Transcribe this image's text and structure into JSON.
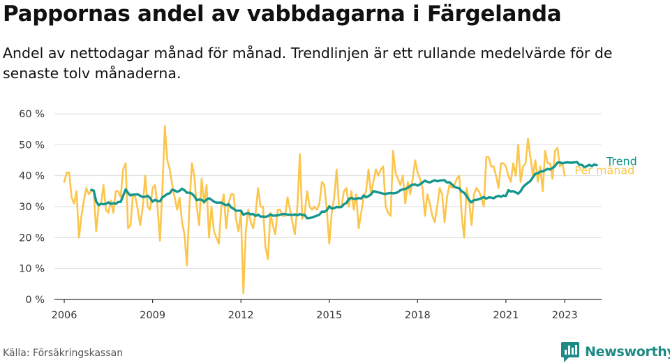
{
  "title": "Pappornas andel av vabbdagarna i Färgelanda",
  "subtitle": "Andel av nettodagar månad för månad. Trendlinjen är ett rullande medelvärde för de senaste tolv månaderna.",
  "source": "Källa: Försäkringskassan",
  "logo": {
    "text": "Newsworthy",
    "icon": "newsworthy-chart-icon"
  },
  "colors": {
    "trend": "#14968c",
    "monthly": "#fcc54c",
    "grid": "#dddddd",
    "axis": "#333333",
    "logo": "#1d8a85"
  },
  "chart_data": {
    "type": "line",
    "x_ticks": [
      "2006",
      "2009",
      "2012",
      "2015",
      "2018",
      "2021",
      "2023"
    ],
    "y_ticks": [
      "0 %",
      "10 %",
      "20 %",
      "30 %",
      "40 %",
      "50 %",
      "60 %"
    ],
    "ylim": [
      0,
      60
    ],
    "xlim": [
      "2005-09",
      "2024-04"
    ],
    "grid": "horizontal",
    "legend": "line-end labels, right",
    "series": [
      {
        "name": "Per månad",
        "color": "#fcc54c",
        "start": "2006-01",
        "values": [
          38,
          41,
          41,
          33,
          31,
          35,
          20,
          27,
          32,
          36,
          34,
          35,
          35,
          22,
          30,
          31,
          37,
          29,
          28,
          32,
          28,
          35,
          35,
          33,
          42,
          44,
          23,
          24,
          34,
          33,
          29,
          24,
          30,
          40,
          30,
          29,
          36,
          37,
          30,
          19,
          36,
          56,
          45,
          42,
          37,
          33,
          29,
          33,
          25,
          21,
          11,
          30,
          44,
          40,
          30,
          24,
          39,
          31,
          37,
          20,
          30,
          22,
          20,
          18,
          30,
          34,
          23,
          31,
          34,
          34,
          26,
          22,
          28,
          2,
          22,
          29,
          25,
          23,
          28,
          36,
          30,
          30,
          17,
          13,
          28,
          24,
          21,
          29,
          29,
          27,
          27,
          33,
          29,
          25,
          21,
          30,
          47,
          26,
          28,
          35,
          30,
          29,
          30,
          29,
          31,
          38,
          37,
          29,
          18,
          28,
          33,
          42,
          30,
          30,
          35,
          36,
          30,
          35,
          29,
          34,
          23,
          28,
          33,
          35,
          42,
          34,
          38,
          42,
          40,
          42,
          43,
          30,
          28,
          27,
          48,
          41,
          39,
          37,
          40,
          31,
          38,
          34,
          39,
          45,
          41,
          39,
          36,
          27,
          34,
          31,
          27,
          25,
          30,
          36,
          34,
          25,
          33,
          37,
          36,
          37,
          39,
          40,
          27,
          20,
          36,
          32,
          24,
          34,
          36,
          35,
          33,
          30,
          46,
          46,
          43,
          43,
          40,
          36,
          44,
          44,
          43,
          40,
          38,
          44,
          40,
          50,
          38,
          43,
          44,
          52,
          46,
          40,
          45,
          38,
          43,
          35,
          48,
          44,
          44,
          39,
          48,
          49,
          43,
          44,
          40
        ]
      },
      {
        "name": "Trend",
        "color": "#14968c",
        "start": "2006-12",
        "values": [
          35.4,
          35.2,
          31.7,
          30.5,
          30.9,
          30.8,
          30.9,
          31.4,
          30.9,
          31.1,
          30.9,
          31.5,
          31.5,
          33.5,
          35.6,
          34.4,
          33.6,
          33.9,
          33.9,
          34.0,
          33.5,
          33.1,
          33.2,
          33.5,
          32.8,
          31.6,
          32.2,
          31.8,
          31.7,
          33.0,
          33.5,
          34.1,
          34.3,
          35.5,
          35.2,
          34.8,
          35.1,
          35.8,
          35.3,
          34.5,
          34.5,
          34.2,
          33.4,
          32.1,
          32.3,
          32.2,
          31.5,
          32.3,
          32.7,
          32.2,
          31.6,
          31.3,
          31.3,
          31.3,
          30.8,
          30.5,
          30.8,
          29.8,
          29.3,
          28.7,
          28.7,
          28.7,
          27.4,
          27.7,
          27.9,
          27.5,
          27.6,
          27.0,
          27.4,
          26.8,
          26.8,
          26.7,
          26.9,
          27.5,
          27.1,
          27.1,
          27.2,
          27.4,
          27.6,
          27.6,
          27.4,
          27.4,
          27.3,
          27.5,
          27.2,
          27.6,
          27.3,
          27.3,
          26.2,
          26.3,
          26.5,
          26.8,
          27.1,
          27.4,
          28.4,
          28.3,
          28.8,
          30.1,
          29.4,
          29.5,
          29.9,
          29.8,
          29.9,
          30.8,
          31.2,
          32.5,
          32.8,
          32.5,
          32.5,
          32.8,
          32.6,
          33.6,
          33.0,
          33.4,
          33.9,
          35.0,
          34.8,
          34.6,
          34.4,
          34.2,
          34.1,
          34.3,
          34.4,
          34.3,
          34.4,
          34.7,
          35.3,
          35.6,
          35.7,
          36.1,
          36.7,
          37.1,
          37.2,
          36.8,
          37.2,
          37.8,
          38.4,
          38.0,
          37.8,
          38.2,
          38.5,
          38.2,
          38.4,
          38.5,
          38.5,
          37.8,
          37.9,
          37.2,
          36.4,
          36.1,
          35.9,
          34.9,
          34.5,
          33.4,
          32.1,
          31.4,
          32.1,
          32.2,
          32.4,
          32.7,
          33.1,
          32.6,
          33.0,
          32.9,
          32.7,
          33.2,
          33.5,
          33.2,
          33.6,
          33.4,
          35.3,
          34.9,
          35.0,
          34.6,
          34.2,
          35.0,
          36.3,
          37.1,
          37.7,
          38.3,
          39.5,
          40.6,
          40.8,
          41.3,
          41.4,
          41.8,
          42.2,
          42.0,
          42.5,
          43.1,
          44.2,
          44.3,
          44.0,
          44.2,
          44.3,
          44.2,
          44.2,
          44.3,
          44.4,
          43.5,
          43.5,
          42.7,
          43.1,
          43.5,
          43.1,
          43.6,
          43.4
        ]
      }
    ]
  }
}
